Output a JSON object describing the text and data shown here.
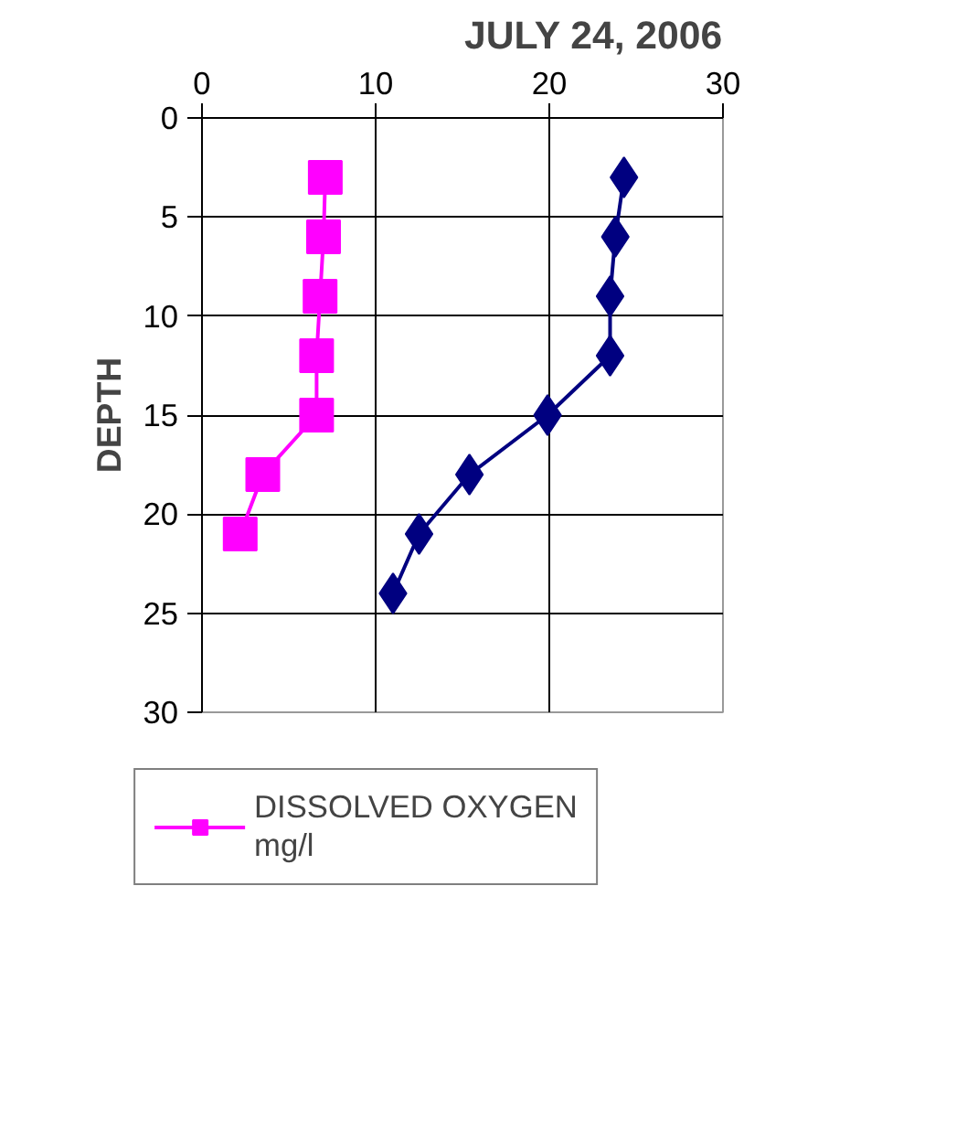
{
  "chart_data": {
    "type": "line",
    "title": "JULY 24, 2006",
    "ylabel": "DEPTH",
    "xlim": [
      0,
      30
    ],
    "xticks": [
      0,
      10,
      20,
      30
    ],
    "ylim": [
      30,
      0
    ],
    "yticks": [
      0,
      5,
      10,
      15,
      20,
      25,
      30
    ],
    "grid": true,
    "legend": "bottom",
    "series": [
      {
        "name": "DISSOLVED OXYGEN\nmg/l",
        "color": "#ff00ff",
        "marker": "square",
        "x": [
          7.1,
          7.0,
          6.8,
          6.6,
          6.6,
          3.5,
          2.2
        ],
        "values": [
          3,
          6,
          9,
          12,
          15,
          18,
          21
        ]
      },
      {
        "color": "#000080",
        "marker": "diamond",
        "x": [
          24.3,
          23.8,
          23.5,
          23.5,
          19.9,
          15.4,
          12.5,
          11.0
        ],
        "values": [
          3,
          6,
          9,
          12,
          15,
          18,
          21,
          24
        ]
      }
    ]
  }
}
